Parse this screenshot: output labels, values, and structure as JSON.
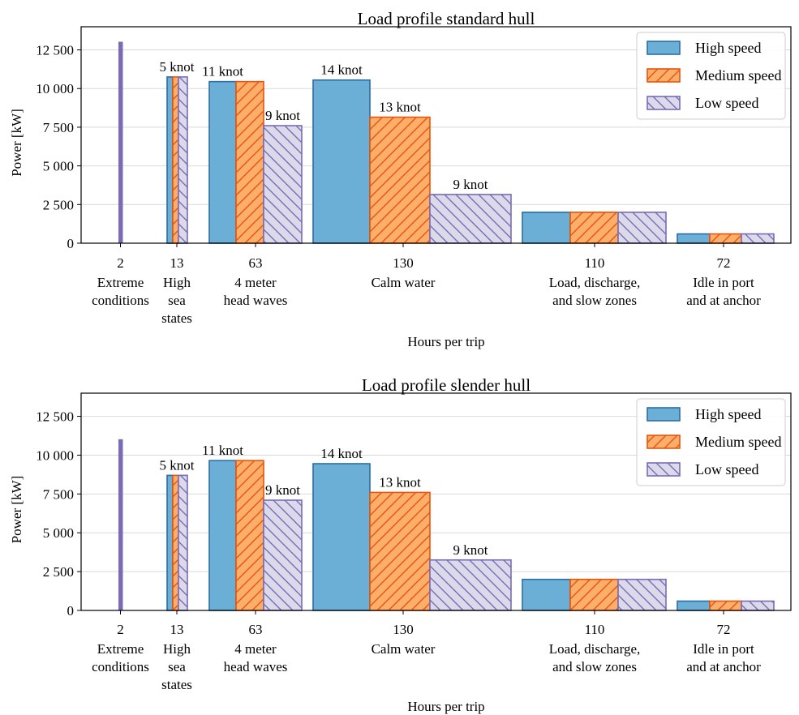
{
  "chart_data": [
    {
      "type": "bar",
      "title": "Load profile standard hull",
      "xlabel": "Hours per trip",
      "ylabel": "Power [kW]",
      "ylim": [
        0,
        13500
      ],
      "yticks": [
        0,
        2500,
        5000,
        7500,
        10000,
        12500
      ],
      "ytick_labels": [
        "0",
        "2 500",
        "5 000",
        "7 500",
        "10 000",
        "12 500"
      ],
      "grid": "horizontal",
      "legend_position": "top-right",
      "categories": [
        {
          "hours": "2",
          "label": [
            "Extreme",
            "conditions"
          ]
        },
        {
          "hours": "13",
          "label": [
            "High",
            "sea",
            "states"
          ]
        },
        {
          "hours": "63",
          "label": [
            "4 meter",
            "head waves"
          ]
        },
        {
          "hours": "130",
          "label": [
            "Calm water"
          ]
        },
        {
          "hours": "110",
          "label": [
            "Load, discharge,",
            "and slow zones"
          ]
        },
        {
          "hours": "72",
          "label": [
            "Idle in port",
            "and at anchor"
          ]
        }
      ],
      "series": [
        {
          "name": "High speed",
          "values": [
            13000,
            10750,
            10450,
            10550,
            2000,
            600
          ]
        },
        {
          "name": "Medium speed",
          "values": [
            13000,
            10750,
            10450,
            8150,
            2000,
            600
          ]
        },
        {
          "name": "Low speed",
          "values": [
            13000,
            10750,
            7600,
            3150,
            2000,
            600
          ]
        }
      ],
      "bar_labels": [
        {
          "category": 1,
          "series": 1,
          "text": "5 knot"
        },
        {
          "category": 2,
          "series": 0,
          "text": "11 knot"
        },
        {
          "category": 2,
          "series": 2,
          "text": "9 knot"
        },
        {
          "category": 3,
          "series": 0,
          "text": "14 knot"
        },
        {
          "category": 3,
          "series": 1,
          "text": "13 knot"
        },
        {
          "category": 3,
          "series": 2,
          "text": "9 knot"
        }
      ]
    },
    {
      "type": "bar",
      "title": "Load profile slender hull",
      "xlabel": "Hours per trip",
      "ylabel": "Power [kW]",
      "ylim": [
        0,
        13500
      ],
      "yticks": [
        0,
        2500,
        5000,
        7500,
        10000,
        12500
      ],
      "ytick_labels": [
        "0",
        "2 500",
        "5 000",
        "7 500",
        "10 000",
        "12 500"
      ],
      "grid": "horizontal",
      "legend_position": "top-right",
      "categories": [
        {
          "hours": "2",
          "label": [
            "Extreme",
            "conditions"
          ]
        },
        {
          "hours": "13",
          "label": [
            "High",
            "sea",
            "states"
          ]
        },
        {
          "hours": "63",
          "label": [
            "4 meter",
            "head waves"
          ]
        },
        {
          "hours": "130",
          "label": [
            "Calm water"
          ]
        },
        {
          "hours": "110",
          "label": [
            "Load, discharge,",
            "and slow zones"
          ]
        },
        {
          "hours": "72",
          "label": [
            "Idle in port",
            "and at anchor"
          ]
        }
      ],
      "series": [
        {
          "name": "High speed",
          "values": [
            11000,
            8700,
            9650,
            9450,
            2000,
            600
          ]
        },
        {
          "name": "Medium speed",
          "values": [
            11000,
            8700,
            9650,
            7600,
            2000,
            600
          ]
        },
        {
          "name": "Low speed",
          "values": [
            11000,
            8700,
            7100,
            3250,
            2000,
            600
          ]
        }
      ],
      "bar_labels": [
        {
          "category": 1,
          "series": 1,
          "text": "5 knot"
        },
        {
          "category": 2,
          "series": 0,
          "text": "11 knot"
        },
        {
          "category": 2,
          "series": 2,
          "text": "9 knot"
        },
        {
          "category": 3,
          "series": 0,
          "text": "14 knot"
        },
        {
          "category": 3,
          "series": 1,
          "text": "13 knot"
        },
        {
          "category": 3,
          "series": 2,
          "text": "9 knot"
        }
      ]
    }
  ],
  "colors": {
    "high_fill": "#6baed6",
    "high_edge": "#2b6ea6",
    "medium_fill": "#fdae6b",
    "medium_edge": "#e6550d",
    "low_fill": "#dadaeb",
    "low_edge": "#7b6bb5",
    "extreme": "#7b6bb5",
    "grid": "#d9d9d9"
  }
}
